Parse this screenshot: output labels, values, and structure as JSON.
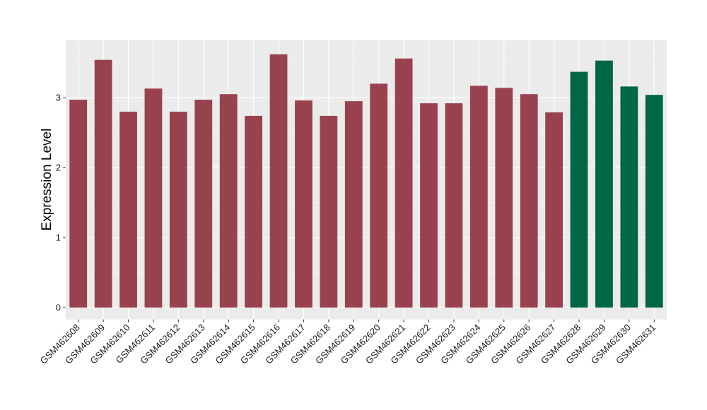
{
  "chart_data": {
    "type": "bar",
    "title": "",
    "xlabel": "",
    "ylabel": "Expression Level",
    "ylim": [
      -0.17,
      3.82
    ],
    "yticks": [
      0,
      1,
      2,
      3
    ],
    "grid": true,
    "categories": [
      "GSM462608",
      "GSM462609",
      "GSM462610",
      "GSM462611",
      "GSM462612",
      "GSM462613",
      "GSM462614",
      "GSM462615",
      "GSM462616",
      "GSM462617",
      "GSM462618",
      "GSM462619",
      "GSM462620",
      "GSM462621",
      "GSM462622",
      "GSM462623",
      "GSM462624",
      "GSM462625",
      "GSM462626",
      "GSM462627",
      "GSM462628",
      "GSM462629",
      "GSM462630",
      "GSM462631"
    ],
    "values": [
      2.97,
      3.54,
      2.8,
      3.13,
      2.8,
      2.97,
      3.05,
      2.74,
      3.62,
      2.96,
      2.74,
      2.95,
      3.2,
      3.56,
      2.92,
      2.92,
      3.17,
      3.14,
      3.05,
      2.79,
      3.37,
      3.53,
      3.16,
      3.04
    ],
    "bar_colors": [
      "#99424f",
      "#99424f",
      "#99424f",
      "#99424f",
      "#99424f",
      "#99424f",
      "#99424f",
      "#99424f",
      "#99424f",
      "#99424f",
      "#99424f",
      "#99424f",
      "#99424f",
      "#99424f",
      "#99424f",
      "#99424f",
      "#99424f",
      "#99424f",
      "#99424f",
      "#99424f",
      "#006645",
      "#006645",
      "#006645",
      "#006645"
    ],
    "panel_color": "#ebebeb"
  }
}
